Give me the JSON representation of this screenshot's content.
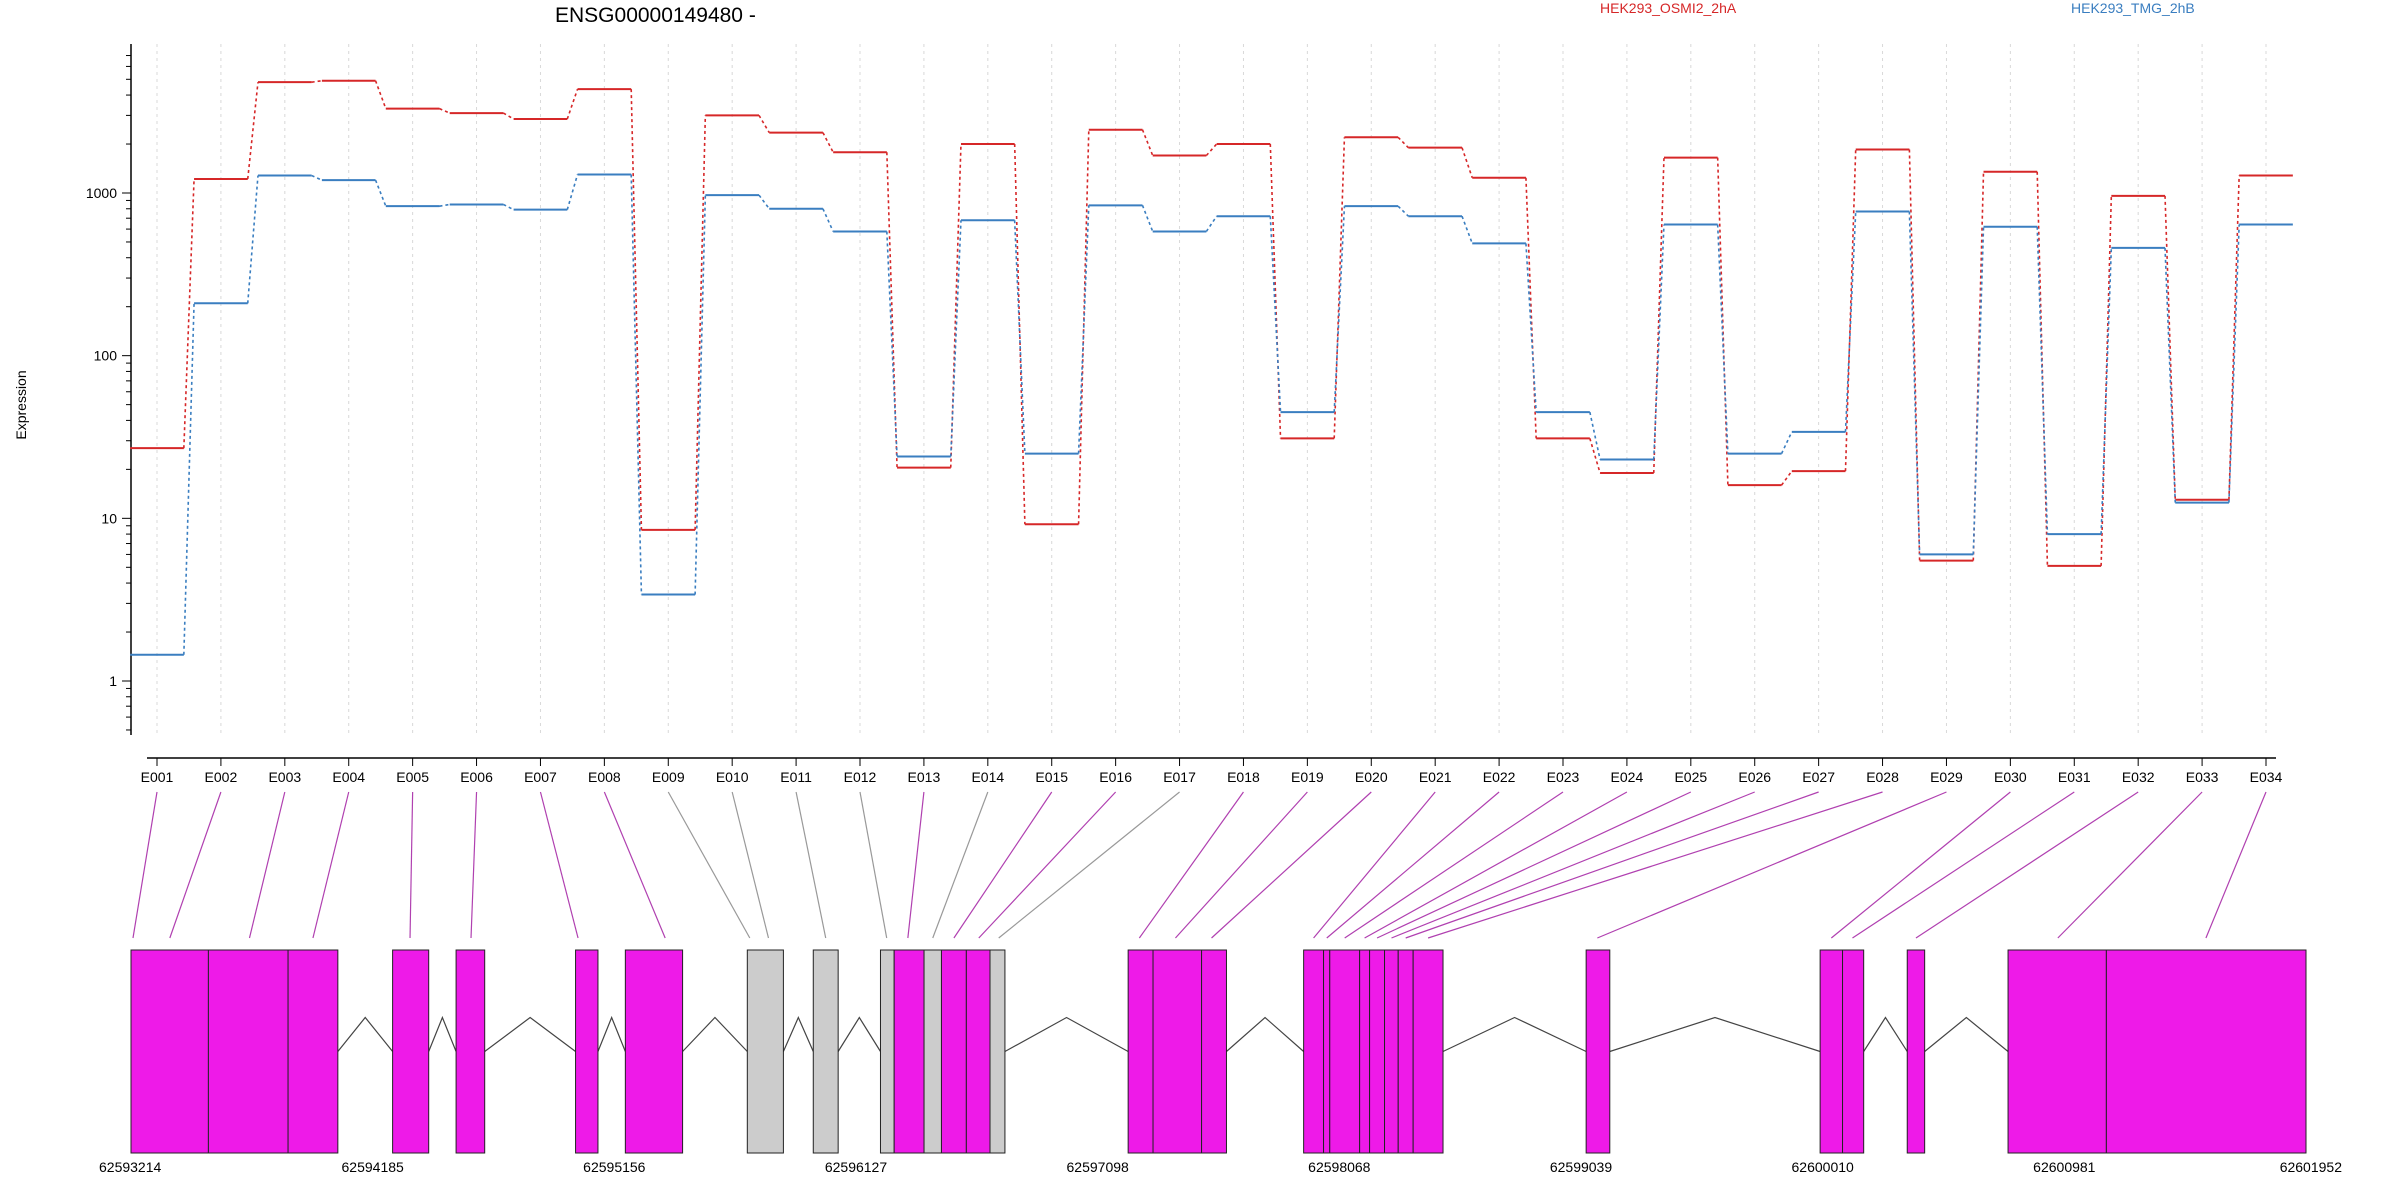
{
  "chart_data": {
    "type": "line",
    "title": "ENSG00000149480 -",
    "ylabel": "Expression",
    "xlabel": "",
    "yscale": "log",
    "ylim": [
      0.5,
      7000
    ],
    "yticks": [
      1,
      10,
      100,
      1000
    ],
    "grid": "vertical dotted lines at each exon",
    "legend_placement": "top-right",
    "categories": [
      "E001",
      "E002",
      "E003",
      "E004",
      "E005",
      "E006",
      "E007",
      "E008",
      "E009",
      "E010",
      "E011",
      "E012",
      "E013",
      "E014",
      "E015",
      "E016",
      "E017",
      "E018",
      "E019",
      "E020",
      "E021",
      "E022",
      "E023",
      "E024",
      "E025",
      "E026",
      "E027",
      "E028",
      "E029",
      "E030",
      "E031",
      "E032",
      "E033",
      "E034"
    ],
    "series": [
      {
        "name": "HEK293_OSMI2_2hA",
        "color": "#d62728",
        "values": [
          27,
          1220,
          4800,
          4900,
          3300,
          3100,
          2850,
          4350,
          8.5,
          3000,
          2350,
          1780,
          20.5,
          2000,
          9.2,
          2450,
          1700,
          2000,
          31,
          2200,
          1900,
          1240,
          31,
          19,
          1650,
          16,
          19.5,
          1850,
          5.5,
          1350,
          5.1,
          960,
          13,
          1280
        ]
      },
      {
        "name": "HEK293_TMG_2hB",
        "color": "#3a7ec0",
        "values": [
          1.45,
          210,
          1280,
          1200,
          830,
          850,
          790,
          1300,
          3.4,
          970,
          800,
          580,
          24,
          680,
          25,
          840,
          580,
          720,
          45,
          830,
          720,
          490,
          45,
          23,
          640,
          25,
          34,
          770,
          6,
          620,
          8,
          460,
          12.5,
          640
        ]
      }
    ],
    "gene_model": {
      "coordinate_labels": [
        "62593214",
        "62594185",
        "62595156",
        "62596127",
        "62597098",
        "62598068",
        "62599039",
        "62600010",
        "62600981",
        "62601952"
      ],
      "start": 62593214,
      "end": 62601952,
      "exon_color": "#ee1ae8",
      "noncounted_color": "#cccccc",
      "exons": [
        {
          "s": 62593214,
          "e": 62593525,
          "c": "m"
        },
        {
          "s": 62593525,
          "e": 62593845,
          "c": "m"
        },
        {
          "s": 62593845,
          "e": 62594045,
          "c": "m"
        },
        {
          "s": 62594265,
          "e": 62594410,
          "c": "m"
        },
        {
          "s": 62594520,
          "e": 62594635,
          "c": "m"
        },
        {
          "s": 62595000,
          "e": 62595090,
          "c": "m"
        },
        {
          "s": 62595200,
          "e": 62595430,
          "c": "m"
        },
        {
          "s": 62595690,
          "e": 62595835,
          "c": "g"
        },
        {
          "s": 62595955,
          "e": 62596055,
          "c": "g"
        },
        {
          "s": 62596225,
          "e": 62596280,
          "c": "g"
        },
        {
          "s": 62596280,
          "e": 62596400,
          "c": "m"
        },
        {
          "s": 62596400,
          "e": 62596470,
          "c": "g"
        },
        {
          "s": 62596470,
          "e": 62596570,
          "c": "m"
        },
        {
          "s": 62596570,
          "e": 62596665,
          "c": "m"
        },
        {
          "s": 62596665,
          "e": 62596725,
          "c": "g"
        },
        {
          "s": 62597220,
          "e": 62597320,
          "c": "m"
        },
        {
          "s": 62597320,
          "e": 62597515,
          "c": "m"
        },
        {
          "s": 62597515,
          "e": 62597615,
          "c": "m"
        },
        {
          "s": 62597925,
          "e": 62598005,
          "c": "m"
        },
        {
          "s": 62598005,
          "e": 62598030,
          "c": "m"
        },
        {
          "s": 62598030,
          "e": 62598150,
          "c": "m"
        },
        {
          "s": 62598150,
          "e": 62598190,
          "c": "m"
        },
        {
          "s": 62598190,
          "e": 62598250,
          "c": "m"
        },
        {
          "s": 62598250,
          "e": 62598305,
          "c": "m"
        },
        {
          "s": 62598305,
          "e": 62598365,
          "c": "m"
        },
        {
          "s": 62598365,
          "e": 62598485,
          "c": "m"
        },
        {
          "s": 62599060,
          "e": 62599155,
          "c": "m"
        },
        {
          "s": 62600000,
          "e": 62600090,
          "c": "m"
        },
        {
          "s": 62600090,
          "e": 62600175,
          "c": "m"
        },
        {
          "s": 62600350,
          "e": 62600420,
          "c": "m"
        },
        {
          "s": 62600755,
          "e": 62601150,
          "c": "m"
        },
        {
          "s": 62601150,
          "e": 62601952,
          "c": "m"
        }
      ],
      "connectors": [
        {
          "e": "E001",
          "g": 62593222,
          "c": "m"
        },
        {
          "e": "E002",
          "g": 62593370,
          "c": "m"
        },
        {
          "e": "E003",
          "g": 62593690,
          "c": "m"
        },
        {
          "e": "E004",
          "g": 62593945,
          "c": "m"
        },
        {
          "e": "E005",
          "g": 62594335,
          "c": "m"
        },
        {
          "e": "E006",
          "g": 62594580,
          "c": "m"
        },
        {
          "e": "E007",
          "g": 62595010,
          "c": "m"
        },
        {
          "e": "E008",
          "g": 62595360,
          "c": "m"
        },
        {
          "e": "E009",
          "g": 62595700,
          "c": "g"
        },
        {
          "e": "E010",
          "g": 62595775,
          "c": "g"
        },
        {
          "e": "E011",
          "g": 62596005,
          "c": "g"
        },
        {
          "e": "E012",
          "g": 62596250,
          "c": "g"
        },
        {
          "e": "E013",
          "g": 62596335,
          "c": "m"
        },
        {
          "e": "E014",
          "g": 62596435,
          "c": "g"
        },
        {
          "e": "E015",
          "g": 62596520,
          "c": "m"
        },
        {
          "e": "E016",
          "g": 62596620,
          "c": "m"
        },
        {
          "e": "E017",
          "g": 62596700,
          "c": "g"
        },
        {
          "e": "E018",
          "g": 62597265,
          "c": "m"
        },
        {
          "e": "E019",
          "g": 62597410,
          "c": "m"
        },
        {
          "e": "E020",
          "g": 62597555,
          "c": "m"
        },
        {
          "e": "E021",
          "g": 62597965,
          "c": "m"
        },
        {
          "e": "E022",
          "g": 62598018,
          "c": "m"
        },
        {
          "e": "E023",
          "g": 62598090,
          "c": "m"
        },
        {
          "e": "E024",
          "g": 62598170,
          "c": "m"
        },
        {
          "e": "E025",
          "g": 62598220,
          "c": "m"
        },
        {
          "e": "E026",
          "g": 62598278,
          "c": "m"
        },
        {
          "e": "E027",
          "g": 62598335,
          "c": "m"
        },
        {
          "e": "E028",
          "g": 62598425,
          "c": "m"
        },
        {
          "e": "E029",
          "g": 62599105,
          "c": "m"
        },
        {
          "e": "E030",
          "g": 62600045,
          "c": "m"
        },
        {
          "e": "E031",
          "g": 62600130,
          "c": "m"
        },
        {
          "e": "E032",
          "g": 62600385,
          "c": "m"
        },
        {
          "e": "E033",
          "g": 62600955,
          "c": "m"
        },
        {
          "e": "E034",
          "g": 62601550,
          "c": "m"
        }
      ]
    }
  }
}
